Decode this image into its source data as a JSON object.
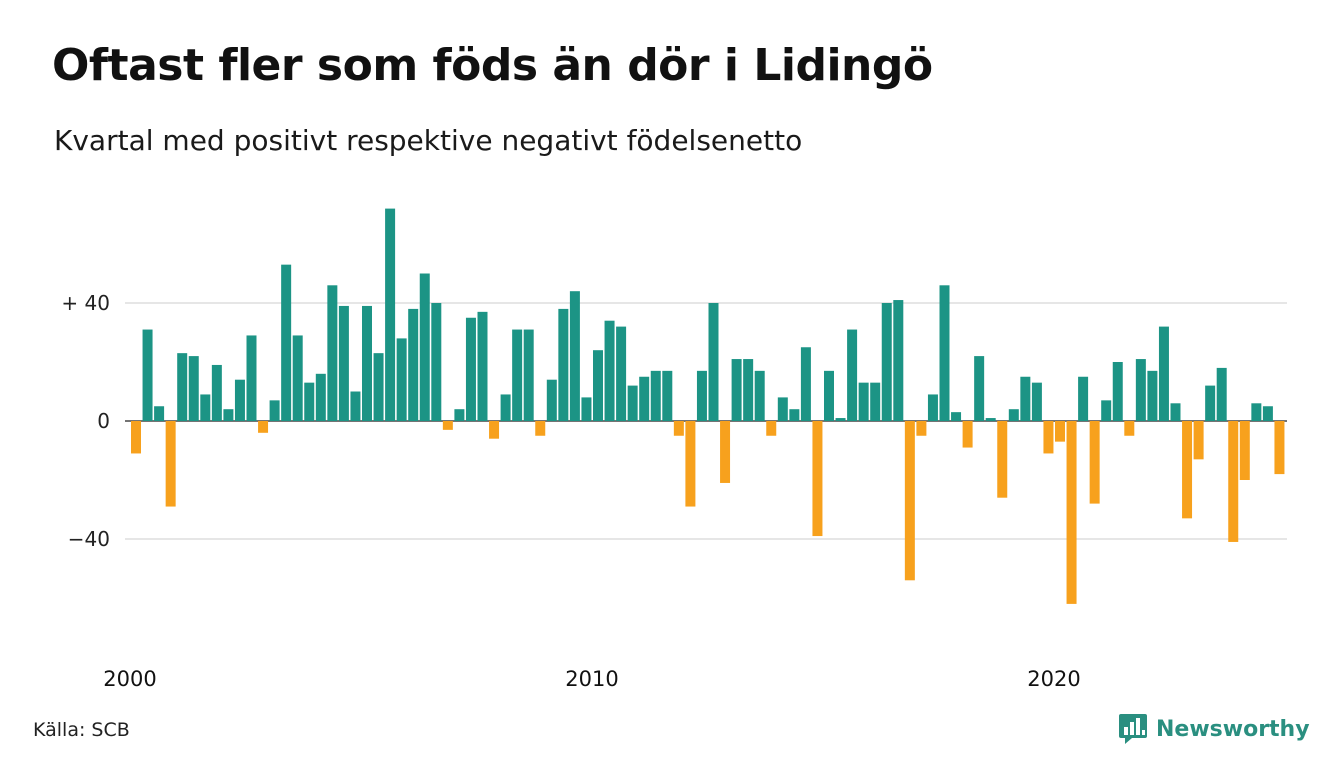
{
  "title": "Oftast fler som föds än dör i Lidingö",
  "subtitle": "Kvartal med positivt respektive negativt födelsenetto",
  "source": "Källa: SCB",
  "brand": {
    "name": "Newsworthy",
    "icon": "newsworthy-logo-icon",
    "color": "#2a8f80"
  },
  "colors": {
    "positive": "#1c9485",
    "negative": "#f7a11d",
    "grid": "#dddddd",
    "zero": "#222222"
  },
  "chart_data": {
    "type": "bar",
    "x_axis": {
      "ticks": [
        "2000",
        "2010",
        "2020"
      ],
      "first_year": 2000
    },
    "y_axis": {
      "ticks": [
        40,
        0,
        -40
      ],
      "tick_labels": [
        "+ 40",
        "0",
        "−40"
      ],
      "ylim": [
        -72,
        72
      ]
    },
    "grid": true,
    "values": [
      -11,
      31,
      5,
      -29,
      23,
      22,
      9,
      19,
      4,
      14,
      29,
      -4,
      7,
      53,
      29,
      13,
      16,
      46,
      39,
      10,
      39,
      23,
      72,
      28,
      38,
      50,
      40,
      -3,
      4,
      35,
      37,
      -6,
      9,
      31,
      31,
      -5,
      14,
      38,
      44,
      8,
      24,
      34,
      32,
      12,
      15,
      17,
      17,
      -5,
      -29,
      17,
      40,
      -21,
      21,
      21,
      17,
      -5,
      8,
      4,
      25,
      -39,
      17,
      1,
      31,
      13,
      13,
      40,
      41,
      -54,
      -5,
      9,
      46,
      3,
      -9,
      22,
      1,
      -26,
      4,
      15,
      13,
      -11,
      -7,
      -62,
      15,
      -28,
      7,
      20,
      -5,
      21,
      17,
      32,
      6,
      -33,
      -13,
      12,
      18,
      -41,
      -20,
      6,
      5,
      -18
    ]
  }
}
